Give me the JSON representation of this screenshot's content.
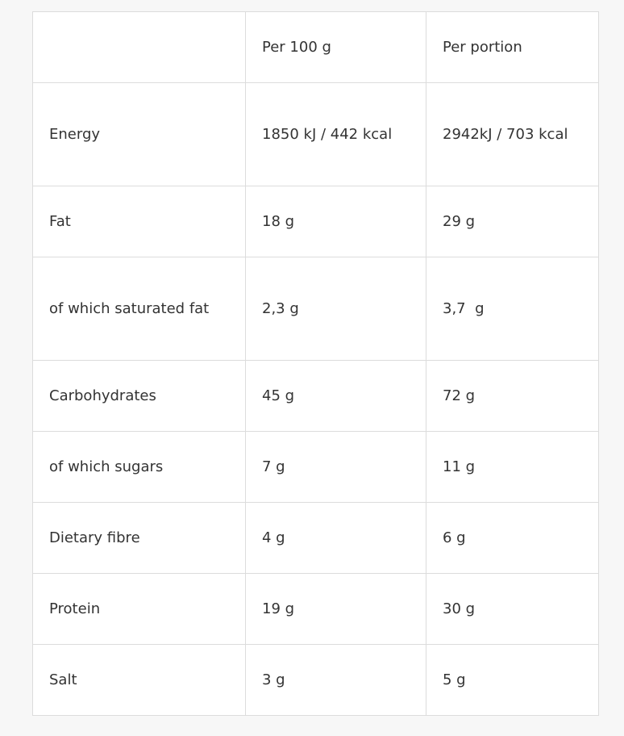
{
  "table": {
    "header": [
      "",
      "Per 100 g",
      "Per portion"
    ],
    "rows": [
      [
        "Energy",
        "1850 kJ / 442 kcal",
        "2942kJ / 703 kcal"
      ],
      [
        "Fat",
        "18 g",
        "29 g"
      ],
      [
        "of which saturated fat",
        "2,3 g",
        "3,7  g"
      ],
      [
        "Carbohydrates",
        "45 g",
        "72 g"
      ],
      [
        "of which sugars",
        "7 g",
        "11 g"
      ],
      [
        "Dietary fibre",
        "4 g",
        "6 g"
      ],
      [
        "Protein",
        "19 g",
        "30 g"
      ],
      [
        "Salt",
        "3 g",
        "5 g"
      ]
    ]
  }
}
